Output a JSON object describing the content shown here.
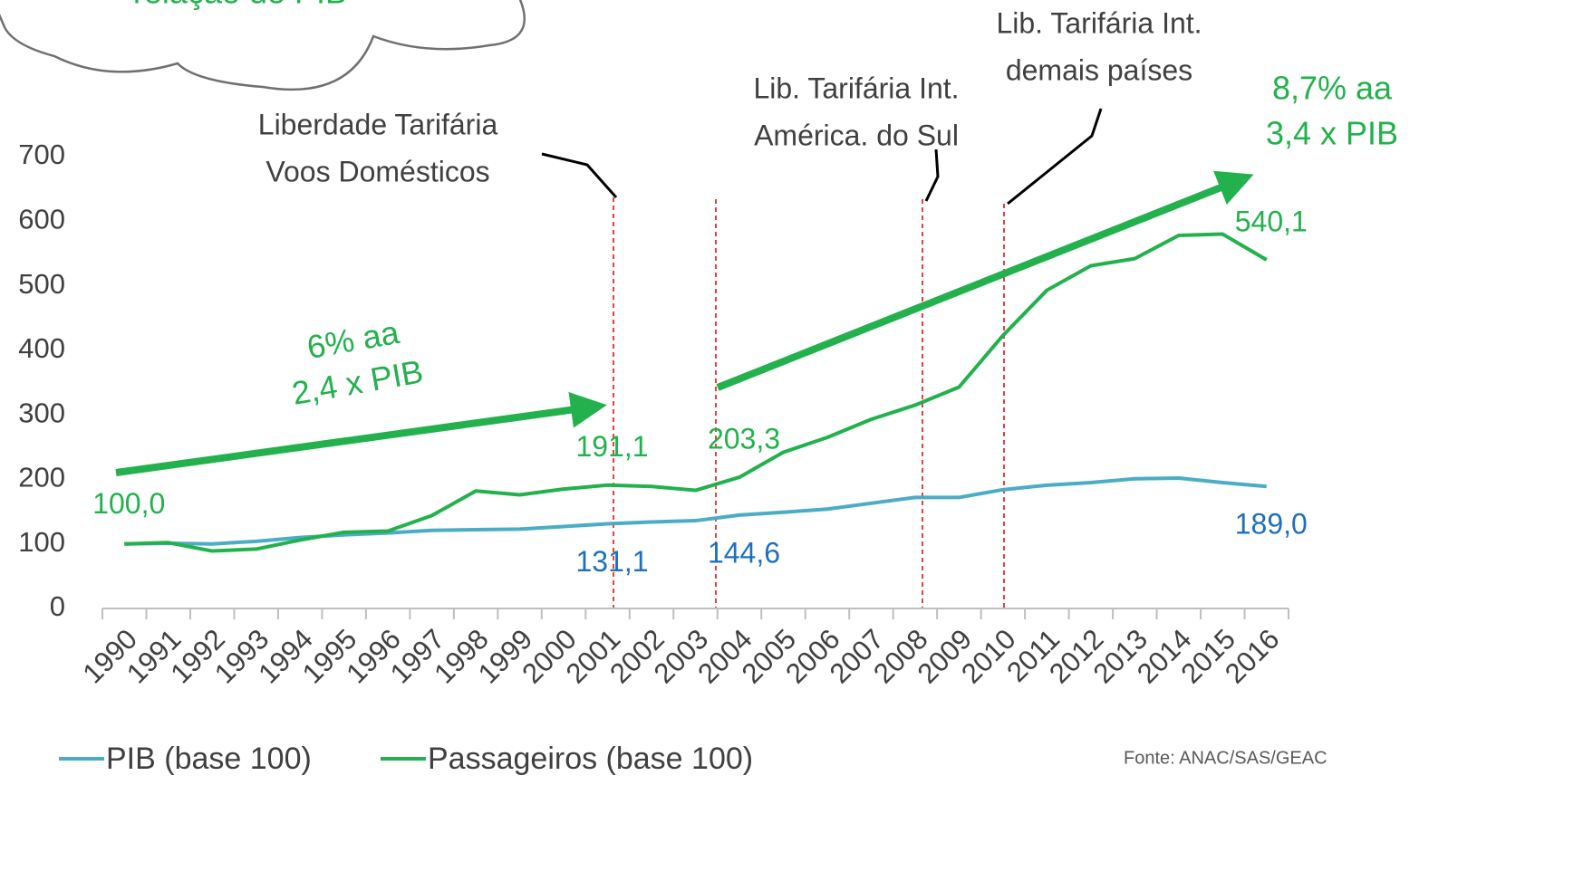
{
  "chart_data": {
    "type": "line",
    "categories": [
      "1990",
      "1991",
      "1992",
      "1993",
      "1994",
      "1995",
      "1996",
      "1997",
      "1998",
      "1999",
      "2000",
      "2001",
      "2002",
      "2003",
      "2004",
      "2005",
      "2006",
      "2007",
      "2008",
      "2009",
      "2010",
      "2011",
      "2012",
      "2013",
      "2014",
      "2015",
      "2016"
    ],
    "series": [
      {
        "name": "PIB (base 100)",
        "color": "#4bacc6",
        "label_color": "#1f6fbf",
        "values": [
          100,
          101,
          100,
          104,
          110,
          114,
          117,
          121,
          122,
          123,
          127,
          131.1,
          134,
          136,
          144.6,
          149,
          154,
          163,
          172,
          172,
          184,
          191,
          195,
          201,
          202,
          195,
          189.0
        ],
        "value_labels": [
          null,
          null,
          null,
          null,
          null,
          null,
          null,
          null,
          null,
          null,
          null,
          "131,1",
          null,
          null,
          "144,6",
          null,
          null,
          null,
          null,
          null,
          null,
          null,
          null,
          null,
          null,
          null,
          "189,0"
        ]
      },
      {
        "name": "Passageiros (base 100)",
        "color": "#22b14c",
        "label_color": "#22b14c",
        "values": [
          100,
          102,
          89,
          92,
          106,
          118,
          120,
          144,
          182,
          176,
          185,
          191.1,
          189,
          183,
          203.3,
          242,
          265,
          293,
          315,
          343,
          423,
          493,
          531,
          542,
          578,
          580,
          540.1
        ],
        "value_labels": [
          "100,0",
          null,
          null,
          null,
          null,
          null,
          null,
          null,
          null,
          null,
          null,
          "191,1",
          null,
          null,
          "203,3",
          null,
          null,
          null,
          null,
          null,
          null,
          null,
          null,
          null,
          null,
          null,
          "540,1"
        ]
      }
    ],
    "ylim": [
      0,
      700
    ],
    "yticks": [
      0,
      100,
      200,
      300,
      400,
      500,
      600,
      700
    ],
    "grid": false,
    "annotations": {
      "cloud": "relação do PIB",
      "domestic": [
        "Liberdade Tarifária",
        "Voos Domésticos"
      ],
      "south_america": [
        "Lib. Tarifária Int.",
        "América. do Sul"
      ],
      "others": [
        "Lib. Tarifária Int.",
        "demais países"
      ],
      "growth_1": [
        "6% aa",
        "2,4 x PIB"
      ],
      "growth_2": [
        "8,7% aa",
        "3,4 x PIB"
      ]
    },
    "source": "Fonte: ANAC/SAS/GEAC"
  }
}
